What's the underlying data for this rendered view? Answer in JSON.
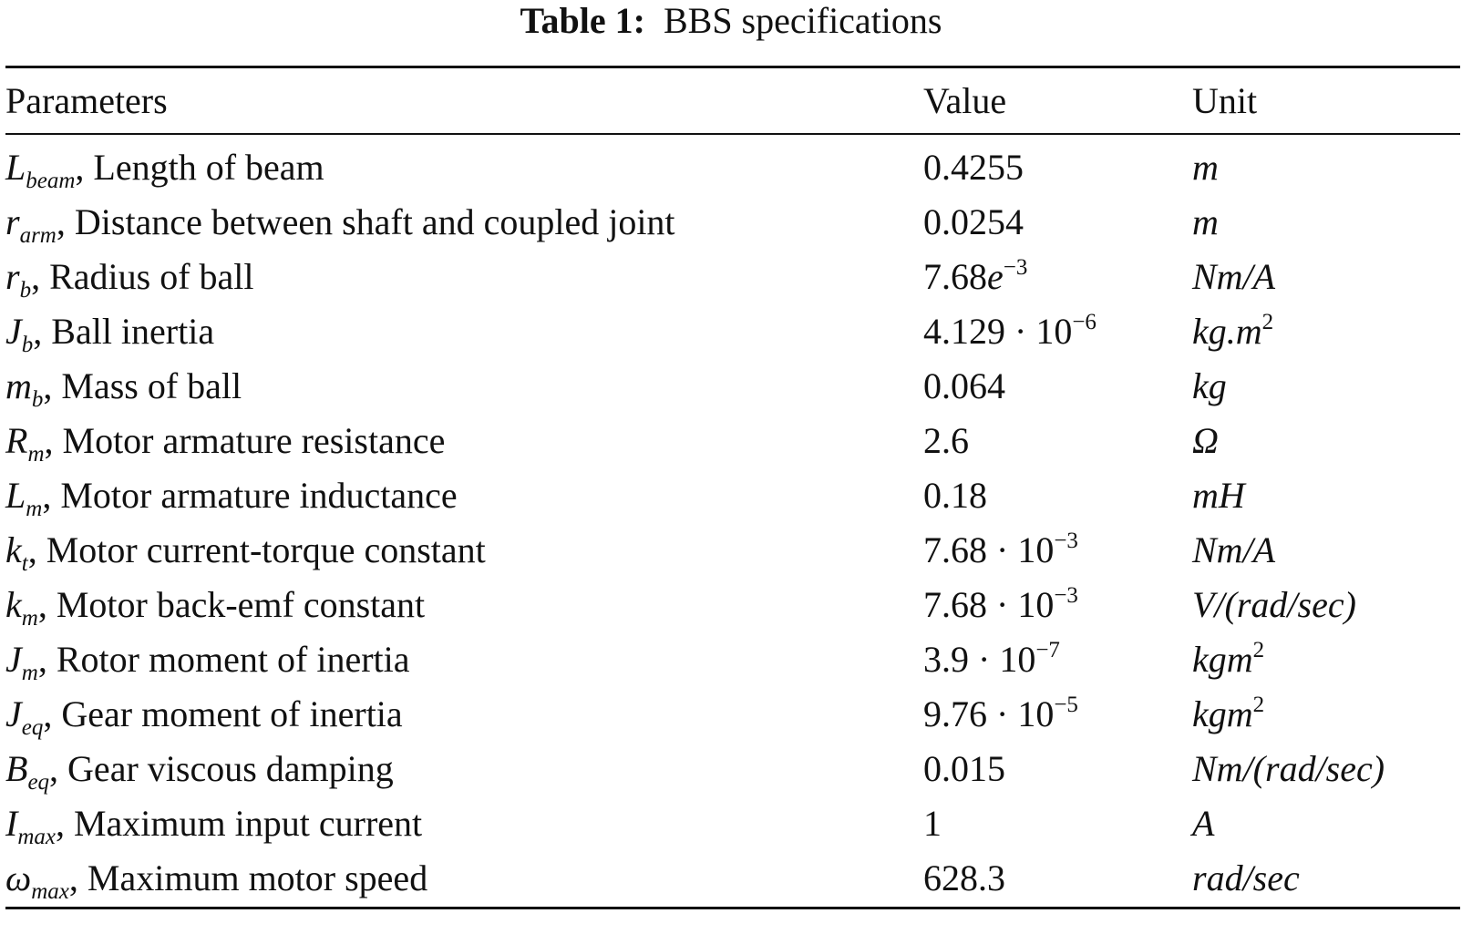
{
  "caption": {
    "label": "Table 1:",
    "title": "BBS specifications"
  },
  "headers": {
    "parameters": "Parameters",
    "value": "Value",
    "unit": "Unit"
  },
  "rows": [
    {
      "symbol": "L",
      "subscript": "beam",
      "description": ", Length of beam",
      "value": "0.4255",
      "value_exp": "",
      "value_exp_italic": "",
      "unit": "m",
      "unit_sup": ""
    },
    {
      "symbol": "r",
      "subscript": "arm",
      "description": ", Distance between shaft and coupled joint",
      "value": "0.0254",
      "value_exp": "",
      "value_exp_italic": "",
      "unit": "m",
      "unit_sup": ""
    },
    {
      "symbol": "r",
      "subscript": "b",
      "description": ", Radius of ball",
      "value": "7.68",
      "value_exp": "−3",
      "value_exp_italic": "e",
      "unit": "Nm/A",
      "unit_sup": ""
    },
    {
      "symbol": "J",
      "subscript": "b",
      "description": ", Ball inertia",
      "value": "4.129 · 10",
      "value_exp": "−6",
      "value_exp_italic": "",
      "unit": "kg.m",
      "unit_sup": "2"
    },
    {
      "symbol": "m",
      "subscript": "b",
      "description": ", Mass of ball",
      "value": "0.064",
      "value_exp": "",
      "value_exp_italic": "",
      "unit": "kg",
      "unit_sup": ""
    },
    {
      "symbol": "R",
      "subscript": "m",
      "description": ", Motor armature resistance",
      "value": "2.6",
      "value_exp": "",
      "value_exp_italic": "",
      "unit": "Ω",
      "unit_sup": ""
    },
    {
      "symbol": "L",
      "subscript": "m",
      "description": ", Motor armature inductance",
      "value": "0.18",
      "value_exp": "",
      "value_exp_italic": "",
      "unit": "mH",
      "unit_sup": ""
    },
    {
      "symbol": "k",
      "subscript": "t",
      "description": ", Motor current-torque constant",
      "value": "7.68 · 10",
      "value_exp": "−3",
      "value_exp_italic": "",
      "unit": "Nm/A",
      "unit_sup": ""
    },
    {
      "symbol": "k",
      "subscript": "m",
      "description": ", Motor back-emf constant",
      "value": "7.68 · 10",
      "value_exp": "−3",
      "value_exp_italic": "",
      "unit": "V/(rad/sec)",
      "unit_sup": ""
    },
    {
      "symbol": "J",
      "subscript": "m",
      "description": ", Rotor moment of inertia",
      "value": "3.9 · 10",
      "value_exp": "−7",
      "value_exp_italic": "",
      "unit": "kgm",
      "unit_sup": "2"
    },
    {
      "symbol": "J",
      "subscript": "eq",
      "description": ", Gear moment of inertia",
      "value": "9.76 · 10",
      "value_exp": "−5",
      "value_exp_italic": "",
      "unit": "kgm",
      "unit_sup": "2"
    },
    {
      "symbol": "B",
      "subscript": "eq",
      "description": ", Gear viscous damping",
      "value": "0.015",
      "value_exp": "",
      "value_exp_italic": "",
      "unit": "Nm/(rad/sec)",
      "unit_sup": ""
    },
    {
      "symbol": "I",
      "subscript": "max",
      "description": ", Maximum input current",
      "value": "1",
      "value_exp": "",
      "value_exp_italic": "",
      "unit": "A",
      "unit_sup": ""
    },
    {
      "symbol": "ω",
      "subscript": "max",
      "description": ", Maximum motor speed",
      "value": "628.3",
      "value_exp": "",
      "value_exp_italic": "",
      "unit": "rad/sec",
      "unit_sup": ""
    }
  ]
}
